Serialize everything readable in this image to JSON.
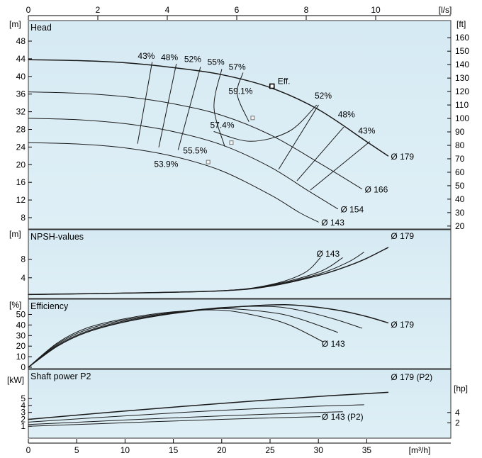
{
  "chart_data": {
    "type": "line",
    "top_axis": {
      "unit": "[l/s]",
      "ticks": [
        "0",
        "2",
        "4",
        "6",
        "8",
        "10"
      ]
    },
    "bottom_axis": {
      "unit": "[m³/h]",
      "ticks": [
        "0",
        "5",
        "10",
        "15",
        "20",
        "25",
        "30",
        "35"
      ]
    },
    "panels": [
      {
        "id": "head",
        "title": "Head",
        "left_unit": "[m]",
        "left_ticks": [
          "8",
          "12",
          "16",
          "20",
          "24",
          "28",
          "32",
          "36",
          "40",
          "44",
          "48"
        ],
        "right_unit": "[ft]",
        "right_ticks": [
          "20",
          "30",
          "40",
          "50",
          "60",
          "70",
          "80",
          "90",
          "100",
          "110",
          "120",
          "130",
          "140",
          "150",
          "160"
        ],
        "series": [
          {
            "name": "Ø 179",
            "x_m3h": [
              0,
              5,
              10,
              15,
              20,
              25,
              30,
              35,
              37.2
            ],
            "head_m": [
              43.8,
              43.6,
              43.1,
              42,
              40.4,
              37.5,
              32.5,
              25.2,
              22
            ]
          },
          {
            "name": "Ø 166",
            "x_m3h": [
              0,
              5,
              10,
              15,
              20,
              25,
              30,
              34.5
            ],
            "head_m": [
              36.5,
              36.2,
              35.4,
              33.8,
              31.2,
              26.8,
              20.5,
              14.5
            ]
          },
          {
            "name": "Ø 154",
            "x_m3h": [
              0,
              5,
              10,
              15,
              20,
              25,
              29,
              32
            ],
            "head_m": [
              30.5,
              30.2,
              29.3,
              27.5,
              24.5,
              19.5,
              14,
              10
            ]
          },
          {
            "name": "Ø 143",
            "x_m3h": [
              0,
              5,
              10,
              15,
              20,
              25,
              28,
              30
            ],
            "head_m": [
              25,
              24.7,
              23.8,
              21.9,
              18.6,
              13.2,
              9.2,
              7
            ]
          }
        ],
        "iso_efficiency": [
          {
            "label": "43%",
            "x_m3h": [
              11.3,
              12.8
            ],
            "head_m": [
              24.8,
              43.2
            ]
          },
          {
            "label": "48%",
            "x_m3h": [
              13.5,
              15.3
            ],
            "head_m": [
              24.0,
              42.8
            ]
          },
          {
            "label": "52%",
            "x_m3h": [
              15.5,
              17.8
            ],
            "head_m": [
              23.4,
              42.1
            ]
          },
          {
            "label": "55%",
            "x_m3h": [
              20.3,
              19.2,
              20.0
            ],
            "head_m": [
              24.2,
              33.0,
              41.6
            ]
          },
          {
            "label": "57%",
            "x_m3h": [
              22.8,
              21.6,
              22.2
            ],
            "head_m": [
              29.8,
              36.0,
              40.8
            ]
          },
          {
            "label": "52%",
            "x_m3h": [
              30.0,
              25.9
            ],
            "head_m": [
              33.5,
              19.0
            ]
          },
          {
            "label": "48%",
            "x_m3h": [
              32.6,
              27.8
            ],
            "head_m": [
              28.5,
              16.4
            ]
          },
          {
            "label": "43%",
            "x_m3h": [
              35.3,
              29.2
            ],
            "head_m": [
              25.2,
              14.3
            ]
          }
        ],
        "efficiency_loop": {
          "x_m3h": [
            19.2,
            23.0,
            27.0,
            29.8
          ],
          "head_m": [
            27.5,
            25.3,
            27.6,
            33.5
          ]
        },
        "bep_labels": [
          {
            "text": "Eff.",
            "x_m3h": 25.2,
            "head_m": 38.3
          },
          {
            "text": "59.1%",
            "x_m3h": 23.2,
            "head_m": 36.0
          },
          {
            "text": "57.4%",
            "x_m3h": 21.3,
            "head_m": 28.3
          },
          {
            "text": "55.5%",
            "x_m3h": 18.5,
            "head_m": 22.5
          },
          {
            "text": "53.9%",
            "x_m3h": 15.5,
            "head_m": 19.5
          }
        ],
        "bep_markers": [
          {
            "x_m3h": 25.2,
            "head_m": 37.8
          },
          {
            "x_m3h": 23.2,
            "head_m": 30.6
          },
          {
            "x_m3h": 21.0,
            "head_m": 25.0
          },
          {
            "x_m3h": 18.6,
            "head_m": 20.6
          }
        ]
      },
      {
        "id": "npsh",
        "title": "NPSH-values",
        "left_unit": "[m]",
        "left_ticks": [
          "4",
          "8"
        ],
        "series": [
          {
            "name": "Ø 179",
            "x_m3h": [
              0,
              10,
              20,
              25,
              30,
              33,
              35,
              37.2
            ],
            "npsh_m": [
              0.4,
              0.7,
              1.2,
              2.2,
              4.5,
              6.5,
              8.2,
              10.5
            ]
          },
          {
            "name": "",
            "x_m3h": [
              0,
              10,
              20,
              25,
              30,
              33,
              34.7
            ],
            "npsh_m": [
              0.4,
              0.7,
              1.2,
              2.3,
              4.8,
              7.3,
              9.5
            ]
          },
          {
            "name": "",
            "x_m3h": [
              0,
              10,
              20,
              25,
              30,
              32.5
            ],
            "npsh_m": [
              0.4,
              0.7,
              1.2,
              2.4,
              5.2,
              8.3
            ]
          },
          {
            "name": "Ø 143",
            "x_m3h": [
              0,
              10,
              20,
              25,
              28.5,
              30.2
            ],
            "npsh_m": [
              0.4,
              0.7,
              1.2,
              2.5,
              5.0,
              8.3
            ]
          }
        ]
      },
      {
        "id": "efficiency",
        "title": "Efficiency",
        "left_unit": "[%]",
        "left_ticks": [
          "0",
          "10",
          "20",
          "30",
          "40",
          "50"
        ],
        "series": [
          {
            "name": "Ø 179",
            "x_m3h": [
              0,
              3,
              6,
              10,
              15,
              20,
              25,
              28,
              32,
              35,
              37.2
            ],
            "eff_pct": [
              0,
              20,
              33,
              43,
              51,
              56,
              59,
              58.5,
              54,
              48,
              42
            ]
          },
          {
            "name": "",
            "x_m3h": [
              0,
              3,
              6,
              10,
              15,
              20,
              25,
              28,
              31.5,
              34.5
            ],
            "eff_pct": [
              0,
              21,
              34,
              44,
              51.5,
              56.5,
              57.5,
              54,
              46,
              37
            ]
          },
          {
            "name": "",
            "x_m3h": [
              0,
              3,
              6,
              10,
              15,
              20,
              25,
              28,
              32
            ],
            "eff_pct": [
              0,
              22,
              35.5,
              45,
              52,
              55.5,
              52,
              46,
              33
            ]
          },
          {
            "name": "Ø 143",
            "x_m3h": [
              0,
              3,
              6,
              10,
              15,
              20,
              24,
              27,
              30.5
            ],
            "eff_pct": [
              0,
              23,
              37,
              46,
              52.5,
              54,
              48,
              40,
              24
            ]
          }
        ]
      },
      {
        "id": "power",
        "title": "Shaft power P2",
        "left_unit": "[kW]",
        "left_ticks": [
          "1",
          "2",
          "3",
          "4",
          "5"
        ],
        "right_unit": "[hp]",
        "right_ticks": [
          "2",
          "4"
        ],
        "series": [
          {
            "name": "Ø 179 (P2)",
            "x_m3h": [
              0,
              10,
              20,
              30,
              37.2
            ],
            "p2_kw": [
              2.0,
              3.2,
              4.3,
              5.3,
              5.9
            ]
          },
          {
            "name": "",
            "x_m3h": [
              0,
              10,
              20,
              30,
              34.7
            ],
            "p2_kw": [
              1.6,
              2.5,
              3.3,
              3.9,
              4.1
            ]
          },
          {
            "name": "",
            "x_m3h": [
              0,
              10,
              20,
              30,
              32.5
            ],
            "p2_kw": [
              1.25,
              1.9,
              2.5,
              3.0,
              3.1
            ]
          },
          {
            "name": "Ø 143 (P2)",
            "x_m3h": [
              0,
              10,
              20,
              30.2
            ],
            "p2_kw": [
              1.0,
              1.5,
              2.0,
              2.4
            ]
          }
        ]
      }
    ]
  }
}
